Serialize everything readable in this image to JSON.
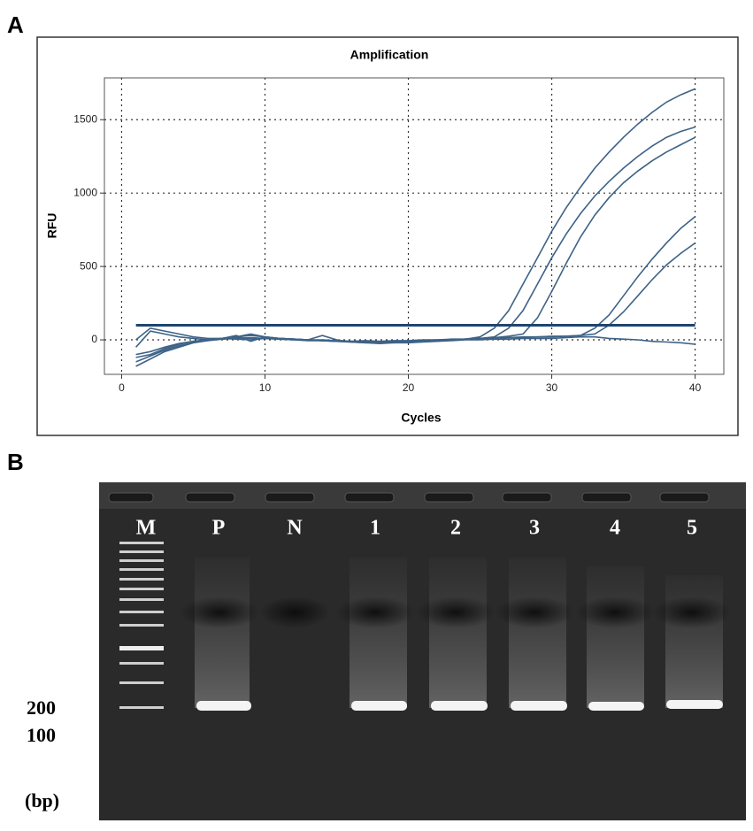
{
  "panel_labels": [
    "A",
    "B"
  ],
  "chart_data": {
    "type": "line",
    "title": "Amplification",
    "x_label": "Cycles",
    "y_label": "RFU",
    "x": [
      1,
      2,
      3,
      4,
      5,
      6,
      7,
      8,
      9,
      10,
      11,
      12,
      13,
      14,
      15,
      16,
      17,
      18,
      19,
      20,
      21,
      22,
      23,
      24,
      25,
      26,
      27,
      28,
      29,
      30,
      31,
      32,
      33,
      34,
      35,
      36,
      37,
      38,
      39,
      40
    ],
    "series": [
      {
        "color": "#3d6286",
        "values": [
          -100,
          -80,
          -50,
          -25,
          -10,
          0,
          5,
          10,
          15,
          10,
          5,
          0,
          -5,
          -5,
          -10,
          -10,
          -5,
          -10,
          -15,
          -10,
          -10,
          -5,
          0,
          5,
          20,
          80,
          200,
          380,
          560,
          740,
          900,
          1040,
          1170,
          1280,
          1380,
          1470,
          1550,
          1620,
          1670,
          1710
        ]
      },
      {
        "color": "#3d6286",
        "values": [
          -150,
          -110,
          -70,
          -40,
          -20,
          -5,
          5,
          15,
          10,
          10,
          5,
          0,
          0,
          -5,
          -5,
          -10,
          -15,
          -15,
          -10,
          -10,
          -5,
          -5,
          0,
          5,
          10,
          20,
          80,
          200,
          380,
          560,
          720,
          860,
          980,
          1080,
          1170,
          1250,
          1320,
          1380,
          1420,
          1450
        ]
      },
      {
        "color": "#3d6286",
        "values": [
          -180,
          -130,
          -80,
          -50,
          -20,
          0,
          10,
          20,
          30,
          20,
          10,
          5,
          0,
          -5,
          -10,
          -15,
          -20,
          -15,
          -10,
          -10,
          -5,
          0,
          0,
          5,
          10,
          15,
          25,
          40,
          150,
          330,
          520,
          700,
          850,
          970,
          1070,
          1150,
          1220,
          1280,
          1330,
          1380
        ]
      },
      {
        "color": "#3d6286",
        "values": [
          -50,
          60,
          40,
          20,
          10,
          0,
          10,
          30,
          -10,
          20,
          10,
          5,
          0,
          30,
          0,
          -15,
          -20,
          -25,
          -20,
          -15,
          -10,
          -5,
          0,
          5,
          10,
          15,
          15,
          20,
          20,
          25,
          25,
          30,
          80,
          170,
          300,
          430,
          550,
          660,
          760,
          840
        ]
      },
      {
        "color": "#3d6286",
        "values": [
          -120,
          -100,
          -60,
          -30,
          -10,
          0,
          10,
          20,
          40,
          20,
          10,
          5,
          0,
          -5,
          -10,
          -15,
          -10,
          -10,
          -5,
          -5,
          0,
          0,
          5,
          5,
          10,
          10,
          15,
          15,
          20,
          20,
          25,
          30,
          40,
          100,
          190,
          300,
          410,
          510,
          590,
          660
        ]
      },
      {
        "color": "#3d6286",
        "values": [
          0,
          80,
          60,
          40,
          20,
          10,
          10,
          5,
          0,
          10,
          10,
          5,
          0,
          0,
          -5,
          -10,
          -10,
          -15,
          -20,
          -20,
          -15,
          -10,
          -5,
          0,
          0,
          5,
          5,
          10,
          10,
          10,
          15,
          20,
          20,
          10,
          5,
          0,
          -10,
          -15,
          -20,
          -30
        ]
      }
    ],
    "threshold": {
      "value": 100,
      "color": "#1f4470"
    },
    "xlim": [
      -1.2,
      42
    ],
    "ylim": [
      -235,
      1785
    ],
    "xticks": [
      0,
      10,
      20,
      30,
      40
    ],
    "yticks": [
      0,
      500,
      1000,
      1500
    ],
    "grid": true
  },
  "gel": {
    "lanes": [
      "M",
      "P",
      "N",
      "1",
      "2",
      "3",
      "4",
      "5"
    ],
    "size_labels": [
      "200",
      "100",
      "(bp)"
    ]
  }
}
